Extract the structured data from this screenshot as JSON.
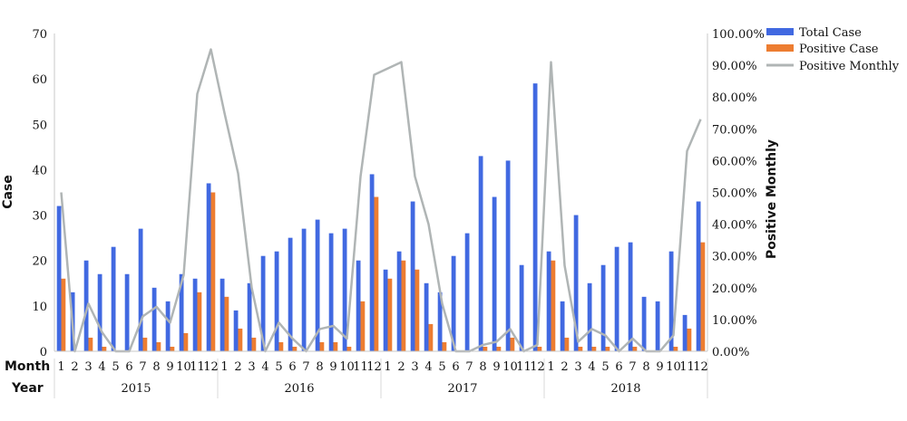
{
  "chart_data": {
    "type": "bar",
    "ylabel": "Case",
    "y2label": "Positive Monthly",
    "ylim": [
      0,
      70
    ],
    "y_ticks": [
      "0",
      "10",
      "20",
      "30",
      "40",
      "50",
      "60",
      "70"
    ],
    "y2lim": [
      0,
      100
    ],
    "y2_ticks": [
      "0.00%",
      "10.00%",
      "20.00%",
      "30.00%",
      "40.00%",
      "50.00%",
      "60.00%",
      "70.00%",
      "80.00%",
      "90.00%",
      "100.00%"
    ],
    "row_labels": {
      "month": "Month",
      "year": "Year"
    },
    "legend_position": "top-right",
    "years": [
      "2015",
      "2016",
      "2017",
      "2018"
    ],
    "months": [
      "1",
      "2",
      "3",
      "4",
      "5",
      "6",
      "7",
      "8",
      "9",
      "10",
      "11",
      "12",
      "1",
      "2",
      "3",
      "4",
      "5",
      "6",
      "7",
      "8",
      "9",
      "10",
      "11",
      "12",
      "1",
      "2",
      "3",
      "4",
      "5",
      "6",
      "7",
      "8",
      "9",
      "10",
      "11",
      "12",
      "1",
      "2",
      "3",
      "4",
      "5",
      "6",
      "7",
      "8",
      "9",
      "10",
      "11",
      "12"
    ],
    "series": [
      {
        "name": "Total Case",
        "type": "bar",
        "color": "#4169e1",
        "values": [
          32,
          13,
          20,
          17,
          23,
          17,
          27,
          14,
          11,
          17,
          16,
          37,
          16,
          9,
          15,
          21,
          22,
          25,
          27,
          29,
          26,
          27,
          20,
          39,
          18,
          22,
          33,
          15,
          13,
          21,
          26,
          43,
          34,
          42,
          19,
          59,
          22,
          11,
          30,
          15,
          19,
          23,
          24,
          12,
          11,
          22,
          8,
          33
        ]
      },
      {
        "name": "Positive Case",
        "type": "bar",
        "color": "#ed7d31",
        "values": [
          16,
          0,
          3,
          1,
          0,
          0,
          3,
          2,
          1,
          4,
          13,
          35,
          12,
          5,
          3,
          0,
          2,
          1,
          0,
          2,
          2,
          1,
          11,
          34,
          16,
          20,
          18,
          6,
          2,
          0,
          0,
          1,
          1,
          3,
          0,
          1,
          20,
          3,
          1,
          1,
          1,
          0,
          1,
          0,
          0,
          1,
          5,
          24
        ]
      },
      {
        "name": "Positive Monthly",
        "type": "line",
        "axis": "right",
        "color": "#b0b5b5",
        "values": [
          50,
          0,
          15,
          6,
          0,
          0,
          11,
          14,
          9,
          24,
          81,
          95,
          75,
          56,
          20,
          0,
          9,
          4,
          0,
          7,
          8,
          4,
          55,
          87,
          89,
          91,
          55,
          40,
          15,
          0,
          0,
          2,
          3,
          7,
          0,
          2,
          91,
          27,
          3,
          7,
          5,
          0,
          4,
          0,
          0,
          5,
          63,
          73
        ]
      }
    ]
  }
}
